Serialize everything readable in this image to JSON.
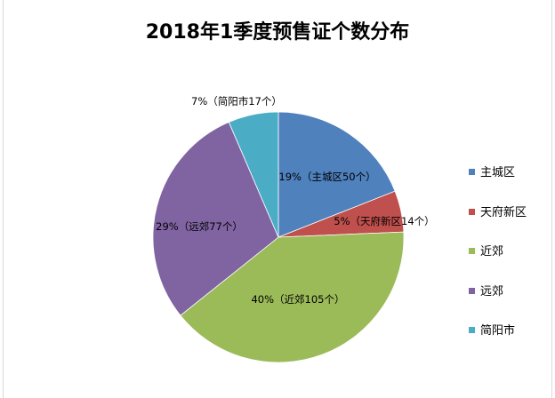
{
  "chart_data": {
    "type": "pie",
    "title": "2018年1季度预售证个数分布",
    "slices": [
      {
        "name": "主城区",
        "value": 50,
        "label": "19%（主城区50个）",
        "color": "#4f81bd"
      },
      {
        "name": "天府新区",
        "value": 14,
        "label": "5%（天府新区14个）",
        "color": "#c0504d"
      },
      {
        "name": "近郊",
        "value": 105,
        "label": "40%（近郊105个）",
        "color": "#9bbb59"
      },
      {
        "name": "远郊",
        "value": 77,
        "label": "29%（远郊77个）",
        "color": "#8064a2"
      },
      {
        "name": "简阳市",
        "value": 17,
        "label": "7%（简阳市17个）",
        "color": "#4bacc6"
      }
    ],
    "legend_position": "right"
  }
}
